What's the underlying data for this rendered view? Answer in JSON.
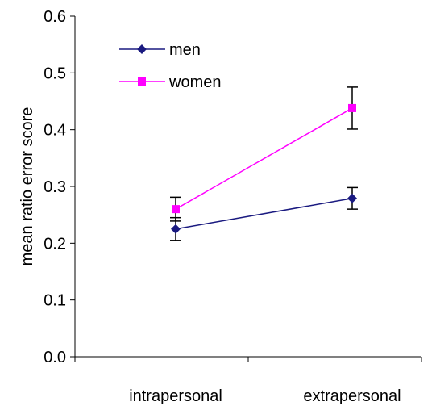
{
  "chart_data": {
    "type": "line",
    "categories": [
      "intrapersonal",
      "extrapersonal"
    ],
    "xlabel": "",
    "ylabel": "mean ratio error score",
    "ylim": [
      0.0,
      0.6
    ],
    "yticks": [
      "0.0",
      "0.1",
      "0.2",
      "0.3",
      "0.4",
      "0.5",
      "0.6"
    ],
    "grid": false,
    "legend_position": "top-left",
    "series": [
      {
        "name": "men",
        "values": [
          0.225,
          0.279
        ],
        "error": [
          0.02,
          0.019
        ],
        "color": "#1a1a80",
        "marker": "diamond"
      },
      {
        "name": "women",
        "values": [
          0.26,
          0.438
        ],
        "error": [
          0.021,
          0.037
        ],
        "color": "#ff00ff",
        "marker": "square"
      }
    ]
  }
}
